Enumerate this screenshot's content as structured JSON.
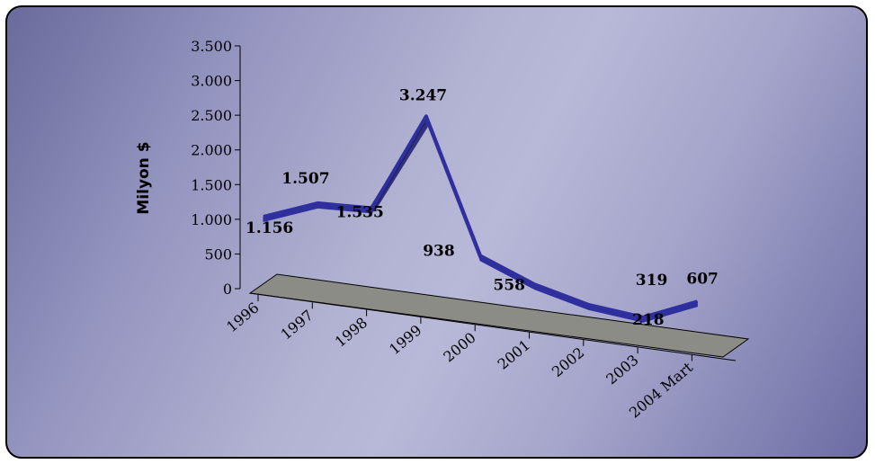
{
  "chart_data": {
    "type": "line",
    "three_d": true,
    "title": "",
    "xlabel": "",
    "ylabel": "Milyon $",
    "ylim": [
      0,
      3500
    ],
    "yticks": [
      0,
      500,
      1000,
      1500,
      2000,
      2500,
      3000,
      3500
    ],
    "ytick_labels": [
      "0",
      "500",
      "1.000",
      "1.500",
      "2.000",
      "2.500",
      "3.000",
      "3.500"
    ],
    "categories": [
      "1996",
      "1997",
      "1998",
      "1999",
      "2000",
      "2001",
      "2002",
      "2003",
      "2004 Mart"
    ],
    "values": [
      1156,
      1507,
      1535,
      3247,
      938,
      558,
      319,
      218,
      607
    ],
    "data_labels": [
      "1.156",
      "1.507",
      "1.535",
      "3.247",
      "938",
      "558",
      "319",
      "218",
      "607"
    ],
    "legend": "none",
    "colors": {
      "line": "#2f2f9e",
      "line_side": "#1c1c6a",
      "floor": "#8c8c86",
      "axis": "#000000"
    }
  }
}
